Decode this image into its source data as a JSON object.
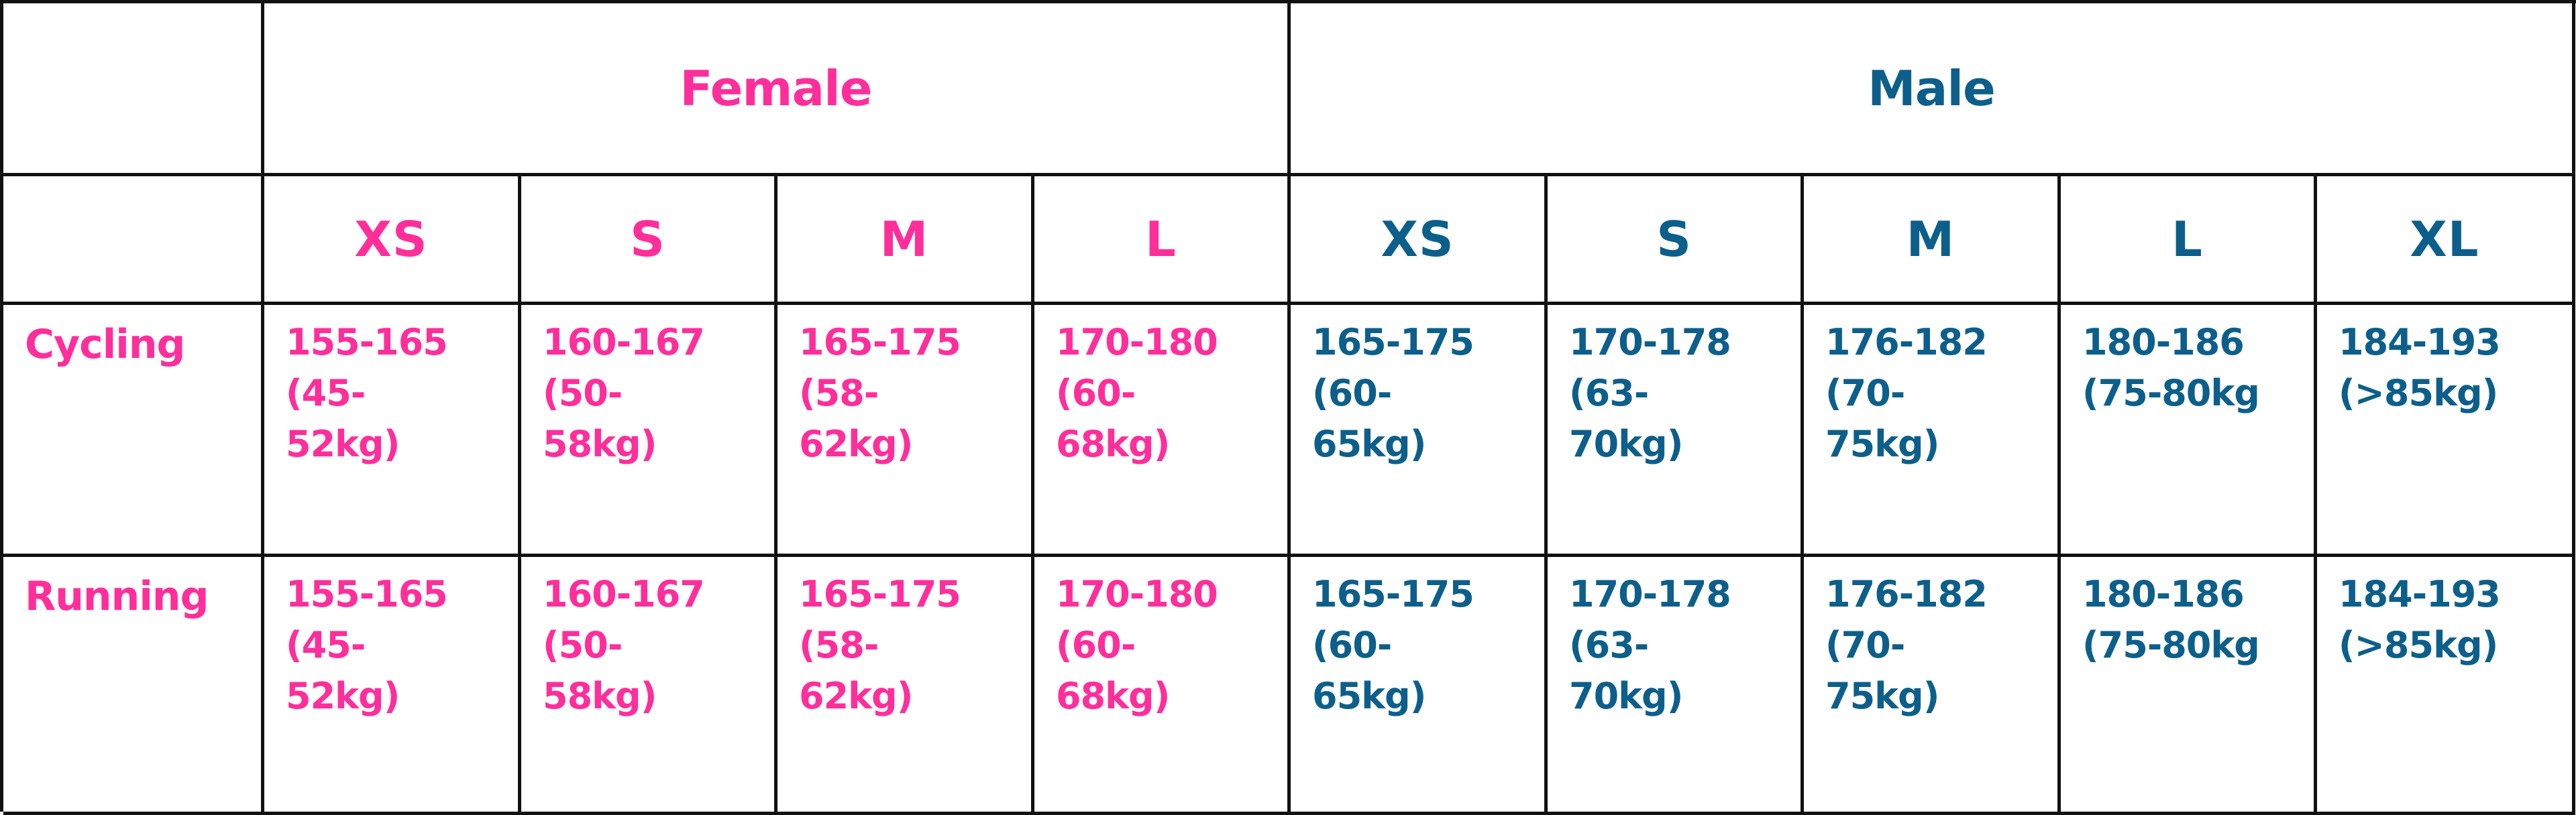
{
  "colors": {
    "female": "#ff2e9b",
    "male": "#0d5f8b",
    "border": "#111111"
  },
  "groups": {
    "female": "Female",
    "male": "Male"
  },
  "sizes": {
    "female": [
      "XS",
      "S",
      "M",
      "L"
    ],
    "male": [
      "XS",
      "S",
      "M",
      "L",
      "XL"
    ]
  },
  "rows": [
    {
      "sport": "Cycling",
      "female": [
        [
          "155-165",
          "(45-",
          "52kg)"
        ],
        [
          "160-167",
          "(50-",
          "58kg)"
        ],
        [
          "165-175",
          "(58-",
          "62kg)"
        ],
        [
          "170-180",
          "(60-",
          "68kg)"
        ]
      ],
      "male": [
        [
          "165-175",
          "(60-",
          "65kg)"
        ],
        [
          "170-178",
          "(63-",
          "70kg)"
        ],
        [
          "176-182",
          "(70-",
          "75kg)"
        ],
        [
          "180-186",
          "(75-80kg"
        ],
        [
          "184-193",
          "(>85kg)"
        ]
      ]
    },
    {
      "sport": "Running",
      "female": [
        [
          "155-165",
          "(45-",
          "52kg)"
        ],
        [
          "160-167",
          "(50-",
          "58kg)"
        ],
        [
          "165-175",
          "(58-",
          "62kg)"
        ],
        [
          "170-180",
          "(60-",
          "68kg)"
        ]
      ],
      "male": [
        [
          "165-175",
          "(60-",
          "65kg)"
        ],
        [
          "170-178",
          "(63-",
          "70kg)"
        ],
        [
          "176-182",
          "(70-",
          "75kg)"
        ],
        [
          "180-186",
          "(75-80kg"
        ],
        [
          "184-193",
          "(>85kg)"
        ]
      ]
    }
  ]
}
